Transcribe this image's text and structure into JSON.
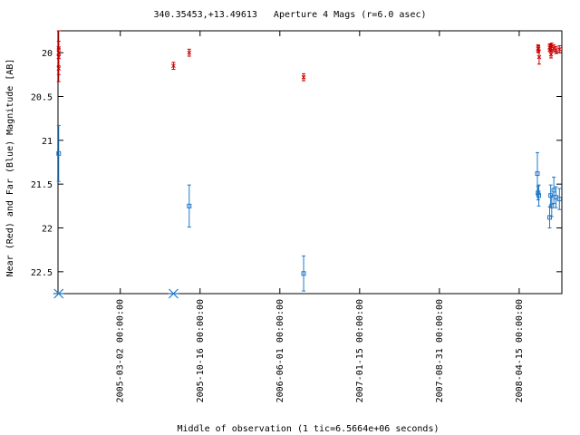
{
  "chart_data": {
    "type": "scatter",
    "title": "340.35453,+13.49613   Aperture 4 Mags (r=6.0 asec)",
    "xlabel": "Middle of observation (1 tic=6.5664e+06 seconds)",
    "ylabel": "Near (Red) and Far (Blue) Magnitude [AB]",
    "ylim": [
      22.75,
      19.75
    ],
    "y_inverted": true,
    "xlim_days": [
      0,
      1366
    ],
    "x_ticks": [
      {
        "day": 178,
        "label": "2005-03-02 00:00:00"
      },
      {
        "day": 406,
        "label": "2005-10-16 00:00:00"
      },
      {
        "day": 634,
        "label": "2006-06-01 00:00:00"
      },
      {
        "day": 862,
        "label": "2007-01-15 00:00:00"
      },
      {
        "day": 1090,
        "label": "2007-08-31 00:00:00"
      },
      {
        "day": 1318,
        "label": "2008-04-15 00:00:00"
      }
    ],
    "y_ticks": [
      20,
      20.5,
      21,
      21.5,
      22,
      22.5
    ],
    "y_tick_labels": [
      "20",
      "20.5",
      "21",
      "21.5",
      "22",
      "22.5"
    ],
    "colors": {
      "near": "#cc0000",
      "far": "#1f78c8",
      "axis": "#000000"
    },
    "series": [
      {
        "key": "near",
        "marker": "x",
        "points": [
          {
            "x": 2,
            "y": 19.95,
            "err": 0.08
          },
          {
            "x": 2,
            "y": 20.05,
            "err": 0.1
          },
          {
            "x": 2,
            "y": 20.18,
            "err": 0.15
          },
          {
            "x": 2,
            "y": 20.0,
            "err": 0.25
          },
          {
            "x": 330,
            "y": 20.15,
            "err": 0.04
          },
          {
            "x": 375,
            "y": 20.0,
            "err": 0.04
          },
          {
            "x": 702,
            "y": 20.28,
            "err": 0.04
          },
          {
            "x": 1372,
            "y": 19.95,
            "err": 0.04
          },
          {
            "x": 1373,
            "y": 19.96,
            "err": 0.04
          },
          {
            "x": 1375,
            "y": 20.05,
            "err": 0.08
          },
          {
            "x": 1405,
            "y": 19.94,
            "err": 0.04
          },
          {
            "x": 1407,
            "y": 19.95,
            "err": 0.04
          },
          {
            "x": 1409,
            "y": 20.02,
            "err": 0.04
          },
          {
            "x": 1411,
            "y": 19.93,
            "err": 0.04
          },
          {
            "x": 1417,
            "y": 19.95,
            "err": 0.04
          },
          {
            "x": 1423,
            "y": 19.97,
            "err": 0.04
          },
          {
            "x": 1433,
            "y": 19.96,
            "err": 0.04
          }
        ]
      },
      {
        "key": "far",
        "marker": "square",
        "points": [
          {
            "x": 2,
            "y": 21.15,
            "err": 0.32
          },
          {
            "x": 375,
            "y": 21.75,
            "err": 0.24
          },
          {
            "x": 702,
            "y": 22.52,
            "err": 0.2
          },
          {
            "x": 1370,
            "y": 21.38,
            "err": 0.24
          },
          {
            "x": 1372,
            "y": 21.6,
            "err": 0.08
          },
          {
            "x": 1374,
            "y": 21.63,
            "err": 0.12
          },
          {
            "x": 1405,
            "y": 21.88,
            "err": 0.12
          },
          {
            "x": 1408,
            "y": 21.63,
            "err": 0.12
          },
          {
            "x": 1411,
            "y": 21.75,
            "err": 0.12
          },
          {
            "x": 1417,
            "y": 21.57,
            "err": 0.15
          },
          {
            "x": 1423,
            "y": 21.65,
            "err": 0.12
          },
          {
            "x": 1433,
            "y": 21.67,
            "err": 0.12
          }
        ]
      },
      {
        "key": "far_upper_limit",
        "marker": "star",
        "points": [
          {
            "x": 2,
            "y": 22.75
          },
          {
            "x": 330,
            "y": 22.75
          }
        ]
      }
    ]
  }
}
